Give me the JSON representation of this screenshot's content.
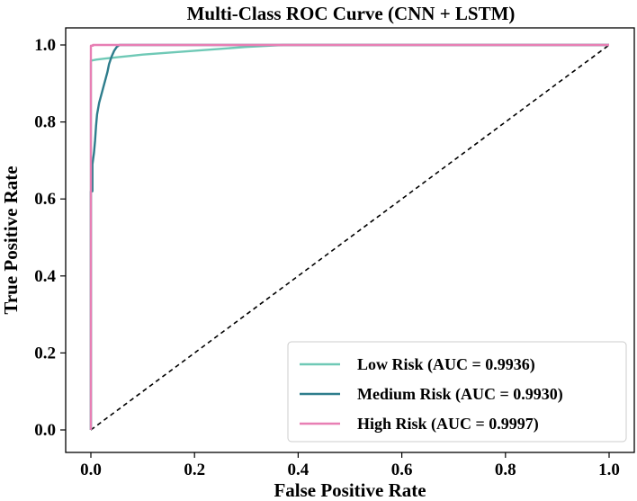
{
  "chart_data": {
    "type": "line",
    "title": "Multi-Class ROC Curve (CNN + LSTM)",
    "xlabel": "False Positive Rate",
    "ylabel": "True Positive Rate",
    "xlim": [
      0.0,
      1.0
    ],
    "ylim": [
      0.0,
      1.0
    ],
    "xticks": [
      "0.0",
      "0.2",
      "0.4",
      "0.6",
      "0.8",
      "1.0"
    ],
    "yticks": [
      "0.0",
      "0.2",
      "0.4",
      "0.6",
      "0.8",
      "1.0"
    ],
    "grid": false,
    "legend_position": "bottom-right",
    "series": [
      {
        "name": "Low Risk (AUC = 0.9936)",
        "color": "#6fc9b6",
        "x": [
          0.0,
          0.0,
          0.003,
          0.01,
          0.03,
          0.05,
          0.08,
          0.1,
          0.15,
          0.2,
          0.25,
          0.3,
          0.37,
          0.4,
          0.6,
          0.8,
          1.0
        ],
        "y": [
          0.0,
          0.96,
          0.96,
          0.962,
          0.965,
          0.968,
          0.972,
          0.975,
          0.98,
          0.985,
          0.99,
          0.995,
          1.0,
          1.0,
          1.0,
          1.0,
          1.0
        ]
      },
      {
        "name": "Medium Risk (AUC = 0.9930)",
        "color": "#2e7d8c",
        "x": [
          0.0,
          0.0,
          0.003,
          0.003,
          0.006,
          0.008,
          0.01,
          0.012,
          0.016,
          0.02,
          0.024,
          0.028,
          0.032,
          0.035,
          0.04,
          0.045,
          0.05,
          0.055,
          0.1,
          0.4,
          1.0
        ],
        "y": [
          0.0,
          0.62,
          0.62,
          0.69,
          0.72,
          0.75,
          0.79,
          0.82,
          0.85,
          0.87,
          0.89,
          0.91,
          0.93,
          0.95,
          0.97,
          0.985,
          0.995,
          1.0,
          1.0,
          1.0,
          1.0
        ]
      },
      {
        "name": "High Risk (AUC = 0.9997)",
        "color": "#e87fb4",
        "x": [
          0.0,
          0.0,
          0.004,
          0.004,
          0.2,
          0.6,
          1.0
        ],
        "y": [
          0.0,
          0.998,
          0.998,
          1.0,
          1.0,
          1.0,
          1.0
        ]
      }
    ],
    "reference_line": {
      "style": "dashed",
      "color": "#000000",
      "x": [
        0.0,
        1.0
      ],
      "y": [
        0.0,
        1.0
      ]
    }
  }
}
